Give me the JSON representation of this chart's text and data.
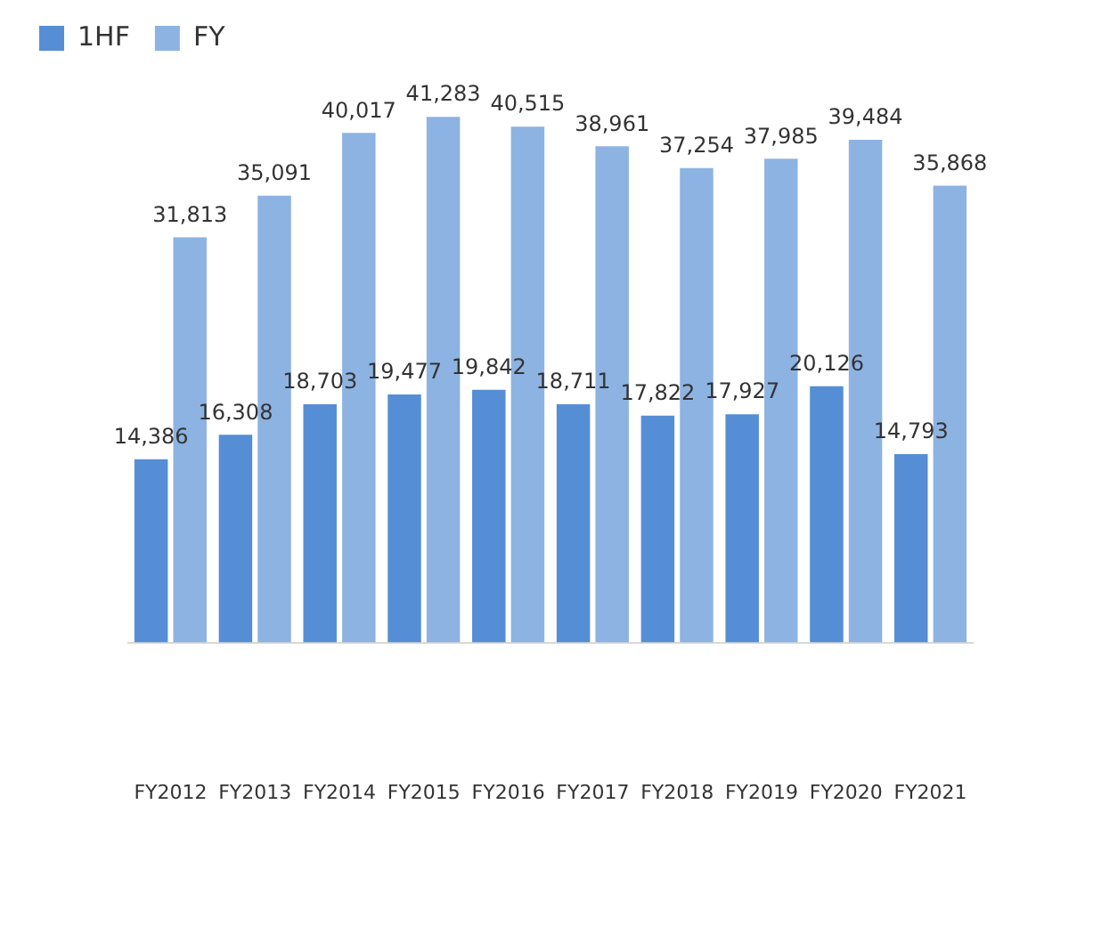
{
  "chart_data": {
    "type": "bar",
    "categories": [
      "FY2012",
      "FY2013",
      "FY2014",
      "FY2015",
      "FY2016",
      "FY2017",
      "FY2018",
      "FY2019",
      "FY2020",
      "FY2021"
    ],
    "series": [
      {
        "name": "1HF",
        "color": "#558ed5",
        "values": [
          14386,
          16308,
          18703,
          19477,
          19842,
          18711,
          17822,
          17927,
          20126,
          14793
        ],
        "value_labels": [
          "14,386",
          "16,308",
          "18,703",
          "19,477",
          "19,842",
          "18,711",
          "17,822",
          "17,927",
          "20,126",
          "14,793"
        ]
      },
      {
        "name": "FY",
        "color": "#8db3e2",
        "values": [
          31813,
          35091,
          40017,
          41283,
          40515,
          38961,
          37254,
          37985,
          39484,
          35868
        ],
        "value_labels": [
          "31,813",
          "35,091",
          "40,017",
          "41,283",
          "40,515",
          "38,961",
          "37,254",
          "37,985",
          "39,484",
          "35,868"
        ]
      }
    ],
    "tick_labels": "x",
    "legend": "top left"
  }
}
